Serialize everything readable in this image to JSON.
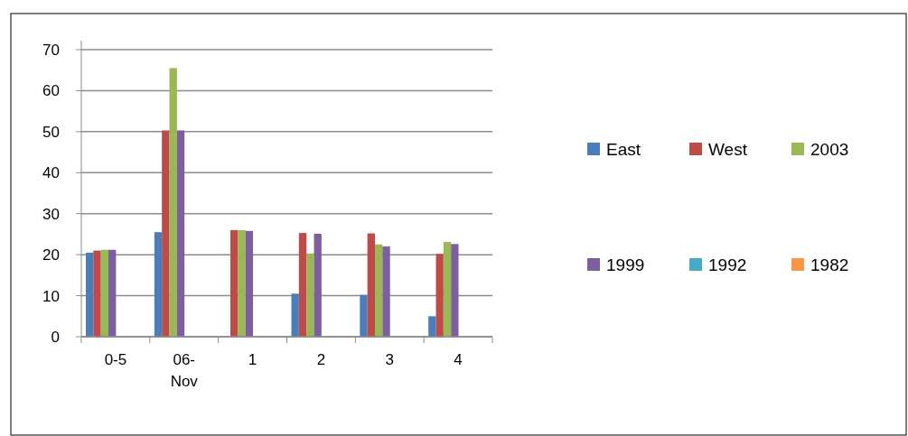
{
  "chart_data": {
    "type": "bar",
    "categories": [
      "0-5",
      "06-Nov",
      "1",
      "2",
      "3",
      "4"
    ],
    "series": [
      {
        "name": "East",
        "color": "#4a7ebb",
        "values": [
          20.5,
          25.5,
          null,
          10.5,
          10.2,
          5
        ]
      },
      {
        "name": "West",
        "color": "#be4b48",
        "values": [
          21,
          50.3,
          26,
          25.3,
          25.2,
          20.2
        ]
      },
      {
        "name": "2003",
        "color": "#98b954",
        "values": [
          21.2,
          65.5,
          26,
          20.3,
          22.5,
          23.1
        ]
      },
      {
        "name": "1999",
        "color": "#7d5fa0",
        "values": [
          21.2,
          50.3,
          25.8,
          25.1,
          22,
          22.6
        ]
      },
      {
        "name": "1992",
        "color": "#46aac5",
        "values": [
          null,
          null,
          null,
          null,
          null,
          null
        ]
      },
      {
        "name": "1982",
        "color": "#f79646",
        "values": [
          null,
          null,
          null,
          null,
          null,
          null
        ]
      }
    ],
    "ylim": [
      0,
      70
    ],
    "yticks": [
      0,
      10,
      20,
      30,
      40,
      50,
      60,
      70
    ],
    "grid": "y",
    "legend": "right"
  }
}
